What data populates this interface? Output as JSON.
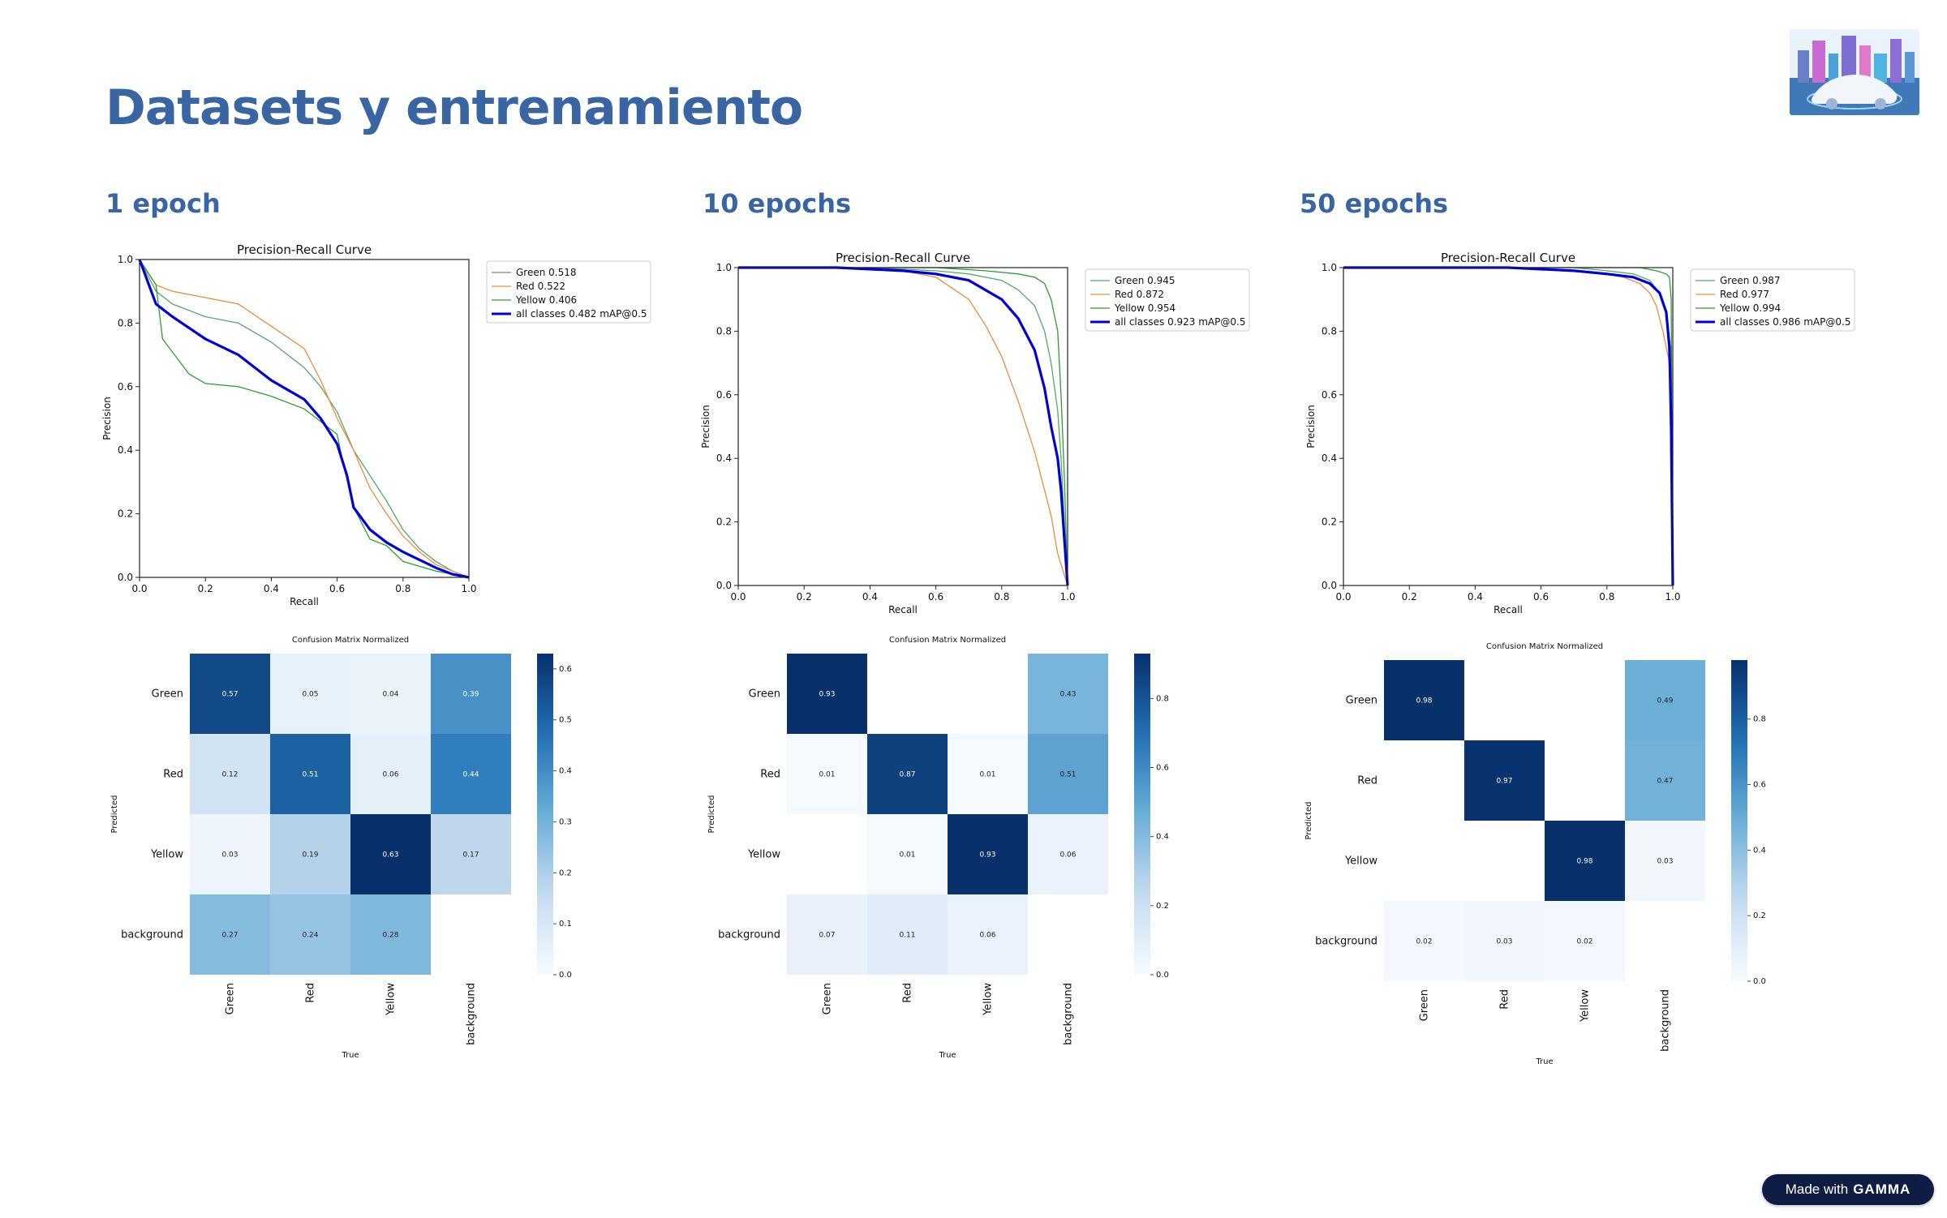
{
  "title": "Datasets y entrenamiento",
  "badge": {
    "prefix": "Made with",
    "brand": "GAMMA"
  },
  "logo_icon": "autonomous-car-city-icon",
  "colors": {
    "heading": "#3a65a3",
    "green": "#55a868",
    "red": "#ed8c3f",
    "yellow": "#2ca02c",
    "all": "#0000dd",
    "green_curve": "#5b8fc9"
  },
  "columns": [
    {
      "heading": "1 epoch"
    },
    {
      "heading": "10 epochs"
    },
    {
      "heading": "50 epochs"
    }
  ],
  "chart_data": [
    {
      "type": "line",
      "title": "Precision-Recall Curve",
      "xlabel": "Recall",
      "ylabel": "Precision",
      "xlim": [
        0,
        1
      ],
      "ylim": [
        0,
        1
      ],
      "ticks": [
        "0.0",
        "0.2",
        "0.4",
        "0.6",
        "0.8",
        "1.0"
      ],
      "series": [
        {
          "name": "Green 0.518",
          "key": "green",
          "x": [
            0,
            0.05,
            0.1,
            0.2,
            0.3,
            0.4,
            0.5,
            0.55,
            0.6,
            0.65,
            0.7,
            0.75,
            0.8,
            0.85,
            0.9,
            0.95,
            1
          ],
          "y": [
            1,
            0.9,
            0.86,
            0.82,
            0.8,
            0.74,
            0.66,
            0.6,
            0.52,
            0.4,
            0.32,
            0.24,
            0.15,
            0.09,
            0.05,
            0.02,
            0
          ]
        },
        {
          "name": "Red 0.522",
          "key": "red",
          "x": [
            0,
            0.05,
            0.1,
            0.2,
            0.3,
            0.4,
            0.5,
            0.55,
            0.6,
            0.65,
            0.7,
            0.75,
            0.8,
            0.85,
            0.9,
            0.95,
            1
          ],
          "y": [
            1,
            0.92,
            0.9,
            0.88,
            0.86,
            0.79,
            0.72,
            0.62,
            0.5,
            0.4,
            0.28,
            0.2,
            0.13,
            0.08,
            0.04,
            0.02,
            0
          ]
        },
        {
          "name": "Yellow 0.406",
          "key": "yellow",
          "x": [
            0,
            0.05,
            0.07,
            0.15,
            0.2,
            0.3,
            0.4,
            0.5,
            0.55,
            0.6,
            0.62,
            0.65,
            0.7,
            0.75,
            0.8,
            0.9,
            1
          ],
          "y": [
            1,
            0.92,
            0.75,
            0.64,
            0.61,
            0.6,
            0.57,
            0.53,
            0.49,
            0.45,
            0.35,
            0.22,
            0.12,
            0.1,
            0.05,
            0.02,
            0
          ]
        },
        {
          "name": "all classes 0.482 mAP@0.5",
          "key": "all",
          "x": [
            0,
            0.05,
            0.1,
            0.2,
            0.3,
            0.4,
            0.5,
            0.55,
            0.6,
            0.63,
            0.65,
            0.7,
            0.75,
            0.8,
            0.9,
            0.95,
            1
          ],
          "y": [
            1,
            0.86,
            0.82,
            0.75,
            0.7,
            0.62,
            0.56,
            0.5,
            0.42,
            0.32,
            0.22,
            0.15,
            0.11,
            0.08,
            0.03,
            0.01,
            0
          ]
        }
      ]
    },
    {
      "type": "line",
      "title": "Precision-Recall Curve",
      "xlabel": "Recall",
      "ylabel": "Precision",
      "xlim": [
        0,
        1
      ],
      "ylim": [
        0,
        1
      ],
      "ticks": [
        "0.0",
        "0.2",
        "0.4",
        "0.6",
        "0.8",
        "1.0"
      ],
      "series": [
        {
          "name": "Green 0.945",
          "key": "green",
          "x": [
            0,
            0.2,
            0.4,
            0.6,
            0.7,
            0.8,
            0.85,
            0.9,
            0.93,
            0.95,
            0.97,
            0.98,
            0.99,
            1
          ],
          "y": [
            1,
            1,
            1,
            0.99,
            0.98,
            0.96,
            0.93,
            0.88,
            0.8,
            0.7,
            0.55,
            0.4,
            0.2,
            0
          ]
        },
        {
          "name": "Red 0.872",
          "key": "red",
          "x": [
            0,
            0.2,
            0.4,
            0.5,
            0.6,
            0.7,
            0.75,
            0.8,
            0.85,
            0.9,
            0.93,
            0.95,
            0.97,
            1
          ],
          "y": [
            1,
            1,
            1,
            0.99,
            0.97,
            0.9,
            0.82,
            0.72,
            0.58,
            0.42,
            0.3,
            0.22,
            0.1,
            0
          ]
        },
        {
          "name": "Yellow 0.954",
          "key": "yellow",
          "x": [
            0,
            0.3,
            0.6,
            0.75,
            0.85,
            0.9,
            0.93,
            0.95,
            0.97,
            0.98,
            0.99,
            1
          ],
          "y": [
            1,
            1,
            1,
            0.99,
            0.98,
            0.97,
            0.95,
            0.9,
            0.8,
            0.6,
            0.35,
            0
          ]
        },
        {
          "name": "all classes 0.923 mAP@0.5",
          "key": "all",
          "x": [
            0,
            0.3,
            0.5,
            0.6,
            0.7,
            0.8,
            0.85,
            0.9,
            0.93,
            0.95,
            0.97,
            0.98,
            0.99,
            1
          ],
          "y": [
            1,
            1,
            0.99,
            0.98,
            0.96,
            0.9,
            0.84,
            0.74,
            0.62,
            0.5,
            0.4,
            0.3,
            0.15,
            0
          ]
        }
      ]
    },
    {
      "type": "line",
      "title": "Precision-Recall Curve",
      "xlabel": "Recall",
      "ylabel": "Precision",
      "xlim": [
        0,
        1
      ],
      "ylim": [
        0,
        1
      ],
      "ticks": [
        "0.0",
        "0.2",
        "0.4",
        "0.6",
        "0.8",
        "1.0"
      ],
      "series": [
        {
          "name": "Green 0.987",
          "key": "green",
          "x": [
            0,
            0.5,
            0.7,
            0.8,
            0.88,
            0.93,
            0.96,
            0.98,
            0.99,
            1
          ],
          "y": [
            1,
            1,
            1,
            0.99,
            0.98,
            0.96,
            0.92,
            0.85,
            0.7,
            0
          ]
        },
        {
          "name": "Red 0.977",
          "key": "red",
          "x": [
            0,
            0.5,
            0.7,
            0.8,
            0.85,
            0.9,
            0.93,
            0.95,
            0.97,
            0.99,
            1
          ],
          "y": [
            1,
            1,
            0.99,
            0.98,
            0.97,
            0.95,
            0.92,
            0.88,
            0.8,
            0.7,
            0
          ]
        },
        {
          "name": "Yellow 0.994",
          "key": "yellow",
          "x": [
            0,
            0.5,
            0.8,
            0.9,
            0.95,
            0.98,
            0.99,
            0.995,
            1
          ],
          "y": [
            1,
            1,
            1,
            1,
            0.99,
            0.98,
            0.97,
            0.9,
            0
          ]
        },
        {
          "name": "all classes 0.986 mAP@0.5",
          "key": "all",
          "x": [
            0,
            0.5,
            0.7,
            0.8,
            0.88,
            0.93,
            0.96,
            0.98,
            0.99,
            0.995,
            1
          ],
          "y": [
            1,
            1,
            0.99,
            0.98,
            0.97,
            0.95,
            0.92,
            0.86,
            0.75,
            0.5,
            0
          ]
        }
      ]
    },
    {
      "type": "heatmap",
      "title": "Confusion Matrix Normalized",
      "xlabel": "True",
      "ylabel": "Predicted",
      "rows": [
        "Green",
        "Red",
        "Yellow",
        "background"
      ],
      "cols": [
        "Green",
        "Red",
        "Yellow",
        "background"
      ],
      "values": [
        [
          0.57,
          0.05,
          0.04,
          0.39
        ],
        [
          0.12,
          0.51,
          0.06,
          0.44
        ],
        [
          0.03,
          0.19,
          0.63,
          0.17
        ],
        [
          0.27,
          0.24,
          0.28,
          null
        ]
      ],
      "labels": [
        [
          "0.57",
          "0.05",
          "0.04",
          "0.39"
        ],
        [
          "0.12",
          "0.51",
          "0.06",
          "0.44"
        ],
        [
          "0.03",
          "0.19",
          "0.63",
          "0.17"
        ],
        [
          "0.27",
          "0.24",
          "0.28",
          ""
        ]
      ],
      "vmax": 0.63,
      "colorbar_ticks": [
        "0.0",
        "0.1",
        "0.2",
        "0.3",
        "0.4",
        "0.5",
        "0.6"
      ],
      "colorbar_values": [
        0,
        0.1,
        0.2,
        0.3,
        0.4,
        0.5,
        0.6
      ]
    },
    {
      "type": "heatmap",
      "title": "Confusion Matrix Normalized",
      "xlabel": "True",
      "ylabel": "Predicted",
      "rows": [
        "Green",
        "Red",
        "Yellow",
        "background"
      ],
      "cols": [
        "Green",
        "Red",
        "Yellow",
        "background"
      ],
      "values": [
        [
          0.93,
          null,
          null,
          0.43
        ],
        [
          0.01,
          0.87,
          0.01,
          0.51
        ],
        [
          null,
          0.01,
          0.93,
          0.06
        ],
        [
          0.07,
          0.11,
          0.06,
          null
        ]
      ],
      "labels": [
        [
          "0.93",
          "",
          "",
          "0.43"
        ],
        [
          "0.01",
          "0.87",
          "0.01",
          "0.51"
        ],
        [
          "",
          "0.01",
          "0.93",
          "0.06"
        ],
        [
          "0.07",
          "0.11",
          "0.06",
          ""
        ]
      ],
      "vmax": 0.93,
      "colorbar_ticks": [
        "0.0",
        "0.2",
        "0.4",
        "0.6",
        "0.8"
      ],
      "colorbar_values": [
        0,
        0.2,
        0.4,
        0.6,
        0.8
      ]
    },
    {
      "type": "heatmap",
      "title": "Confusion Matrix Normalized",
      "xlabel": "True",
      "ylabel": "Predicted",
      "rows": [
        "Green",
        "Red",
        "Yellow",
        "background"
      ],
      "cols": [
        "Green",
        "Red",
        "Yellow",
        "background"
      ],
      "values": [
        [
          0.98,
          null,
          null,
          0.49
        ],
        [
          null,
          0.97,
          null,
          0.47
        ],
        [
          null,
          null,
          0.98,
          0.03
        ],
        [
          0.02,
          0.03,
          0.02,
          null
        ]
      ],
      "labels": [
        [
          "0.98",
          "",
          "",
          "0.49"
        ],
        [
          "",
          "0.97",
          "",
          "0.47"
        ],
        [
          "",
          "",
          "0.98",
          "0.03"
        ],
        [
          "0.02",
          "0.03",
          "0.02",
          ""
        ]
      ],
      "vmax": 0.98,
      "colorbar_ticks": [
        "0.0",
        "0.2",
        "0.4",
        "0.6",
        "0.8"
      ],
      "colorbar_values": [
        0,
        0.2,
        0.4,
        0.6,
        0.8
      ]
    }
  ]
}
